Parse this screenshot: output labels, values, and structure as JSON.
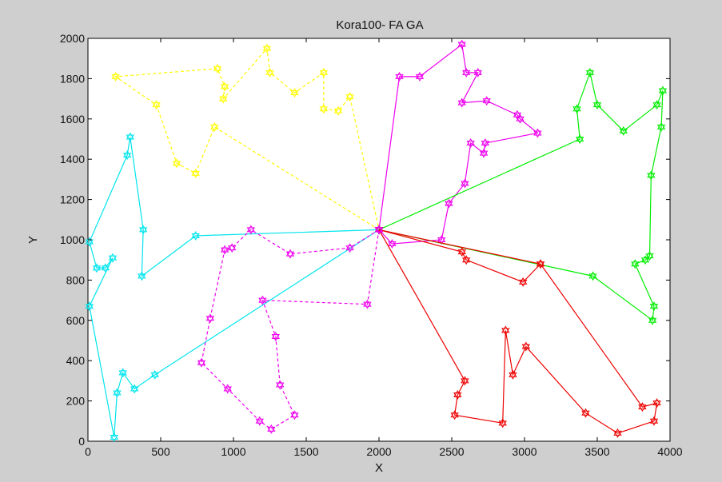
{
  "chart_data": {
    "type": "line",
    "title": "Kora100- FA GA",
    "xlabel": "X",
    "ylabel": "Y",
    "xlim": [
      0,
      4000
    ],
    "ylim": [
      0,
      2000
    ],
    "xticks": [
      0,
      500,
      1000,
      1500,
      2000,
      2500,
      3000,
      3500,
      4000
    ],
    "yticks": [
      0,
      200,
      400,
      600,
      800,
      1000,
      1200,
      1400,
      1600,
      1800,
      2000
    ],
    "grid": false,
    "legend": "none",
    "depot": [
      2000,
      1050
    ],
    "series": [
      {
        "color": "#ffff00",
        "dashed": true,
        "points": [
          [
            2000,
            1050
          ],
          [
            870,
            1560
          ],
          [
            740,
            1330
          ],
          [
            610,
            1380
          ],
          [
            470,
            1670
          ],
          [
            190,
            1810
          ],
          [
            890,
            1850
          ],
          [
            940,
            1760
          ],
          [
            930,
            1700
          ],
          [
            1230,
            1950
          ],
          [
            1250,
            1830
          ],
          [
            1420,
            1730
          ],
          [
            1620,
            1830
          ],
          [
            1620,
            1650
          ],
          [
            1720,
            1640
          ],
          [
            1800,
            1710
          ],
          [
            2000,
            1050
          ]
        ]
      },
      {
        "color": "#00e5ee",
        "dashed": false,
        "points": [
          [
            2000,
            1050
          ],
          [
            740,
            1020
          ],
          [
            370,
            820
          ],
          [
            380,
            1050
          ],
          [
            290,
            1510
          ],
          [
            270,
            1420
          ],
          [
            10,
            990
          ],
          [
            60,
            860
          ],
          [
            120,
            860
          ],
          [
            170,
            910
          ],
          [
            10,
            670
          ],
          [
            180,
            20
          ],
          [
            200,
            240
          ],
          [
            240,
            340
          ],
          [
            320,
            260
          ],
          [
            460,
            330
          ],
          [
            2000,
            1050
          ]
        ]
      },
      {
        "color": "#ee00ee",
        "dashed": true,
        "points": [
          [
            2000,
            1050
          ],
          [
            1800,
            960
          ],
          [
            1390,
            930
          ],
          [
            1120,
            1050
          ],
          [
            990,
            960
          ],
          [
            940,
            950
          ],
          [
            840,
            610
          ],
          [
            780,
            390
          ],
          [
            960,
            260
          ],
          [
            1180,
            100
          ],
          [
            1260,
            60
          ],
          [
            1420,
            130
          ],
          [
            1320,
            280
          ],
          [
            1290,
            520
          ],
          [
            1200,
            700
          ],
          [
            1920,
            680
          ],
          [
            2000,
            1050
          ]
        ]
      },
      {
        "color": "#ee00ee",
        "dashed": false,
        "points": [
          [
            2000,
            1050
          ],
          [
            2090,
            980
          ],
          [
            2430,
            1000
          ],
          [
            2480,
            1180
          ],
          [
            2590,
            1280
          ],
          [
            2630,
            1480
          ],
          [
            2720,
            1430
          ],
          [
            2730,
            1480
          ],
          [
            3090,
            1530
          ],
          [
            2970,
            1600
          ],
          [
            2950,
            1620
          ],
          [
            2740,
            1690
          ],
          [
            2570,
            1680
          ],
          [
            2680,
            1830
          ],
          [
            2600,
            1830
          ],
          [
            2570,
            1970
          ],
          [
            2280,
            1810
          ],
          [
            2140,
            1810
          ],
          [
            2000,
            1050
          ]
        ]
      },
      {
        "color": "#00ee00",
        "dashed": false,
        "points": [
          [
            2000,
            1050
          ],
          [
            3380,
            1500
          ],
          [
            3360,
            1650
          ],
          [
            3450,
            1830
          ],
          [
            3500,
            1670
          ],
          [
            3680,
            1540
          ],
          [
            3910,
            1670
          ],
          [
            3950,
            1740
          ],
          [
            3940,
            1560
          ],
          [
            3870,
            1320
          ],
          [
            3860,
            920
          ],
          [
            3830,
            900
          ],
          [
            3760,
            880
          ],
          [
            3890,
            670
          ],
          [
            3880,
            600
          ],
          [
            3470,
            820
          ],
          [
            2000,
            1050
          ]
        ]
      },
      {
        "color": "#ee0000",
        "dashed": false,
        "points": [
          [
            2000,
            1050
          ],
          [
            3110,
            880
          ],
          [
            3810,
            170
          ],
          [
            3910,
            190
          ],
          [
            3890,
            100
          ],
          [
            3640,
            40
          ],
          [
            3420,
            140
          ],
          [
            3010,
            470
          ],
          [
            2920,
            330
          ],
          [
            2870,
            550
          ],
          [
            2850,
            90
          ],
          [
            2520,
            130
          ],
          [
            2540,
            230
          ],
          [
            2590,
            300
          ],
          [
            2000,
            1050
          ]
        ]
      },
      {
        "color": "#ee0000",
        "dashed": false,
        "points": [
          [
            2000,
            1050
          ],
          [
            2570,
            940
          ],
          [
            2600,
            900
          ],
          [
            2990,
            790
          ],
          [
            3110,
            880
          ]
        ]
      }
    ]
  }
}
